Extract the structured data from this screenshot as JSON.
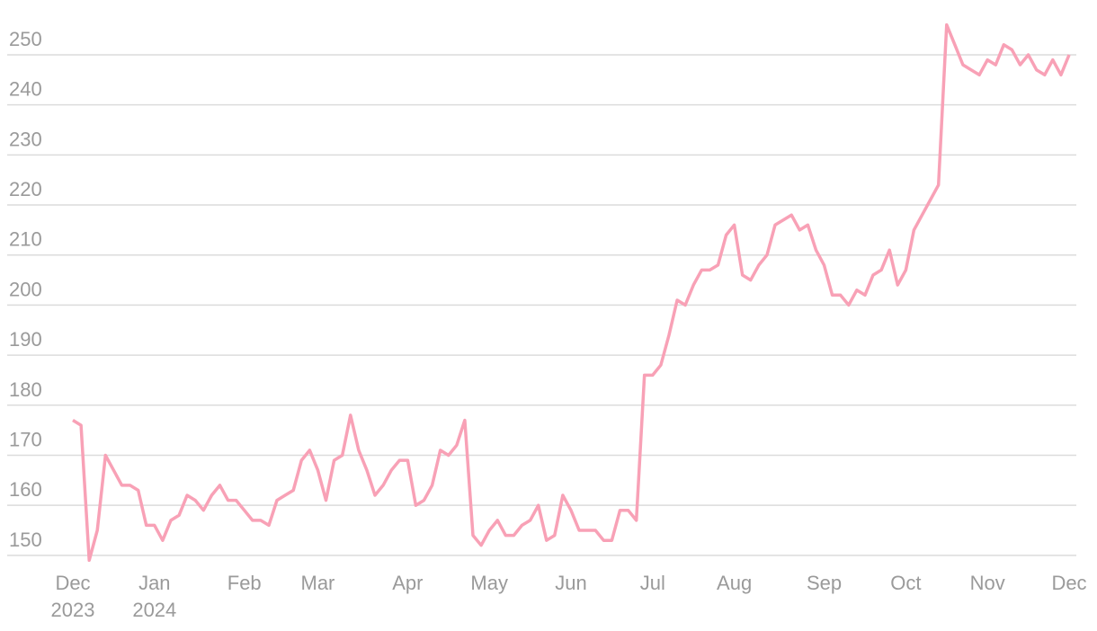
{
  "chart_data": {
    "type": "line",
    "categories": [
      "Dec 2023",
      null,
      null,
      null,
      null,
      null,
      null,
      null,
      null,
      null,
      "Jan 2024",
      null,
      null,
      null,
      null,
      null,
      null,
      null,
      null,
      null,
      null,
      "Feb",
      null,
      null,
      null,
      null,
      null,
      null,
      null,
      null,
      "Mar",
      null,
      null,
      null,
      null,
      null,
      null,
      null,
      null,
      null,
      null,
      "Apr",
      null,
      null,
      null,
      null,
      null,
      null,
      null,
      null,
      null,
      "May",
      null,
      null,
      null,
      null,
      null,
      null,
      null,
      null,
      null,
      "Jun",
      null,
      null,
      null,
      null,
      null,
      null,
      null,
      null,
      null,
      "Jul",
      null,
      null,
      null,
      null,
      null,
      null,
      null,
      null,
      null,
      "Aug",
      null,
      null,
      null,
      null,
      null,
      null,
      null,
      null,
      null,
      null,
      "Sep",
      null,
      null,
      null,
      null,
      null,
      null,
      null,
      null,
      null,
      "Oct",
      null,
      null,
      null,
      null,
      null,
      null,
      null,
      null,
      null,
      "Nov",
      null,
      null,
      null,
      null,
      null,
      null,
      null,
      null,
      null,
      "Dec"
    ],
    "values": [
      177,
      176,
      149,
      155,
      170,
      167,
      164,
      164,
      163,
      156,
      156,
      153,
      157,
      158,
      162,
      161,
      159,
      162,
      164,
      161,
      161,
      159,
      157,
      157,
      156,
      161,
      162,
      163,
      169,
      171,
      167,
      161,
      169,
      170,
      178,
      171,
      167,
      162,
      164,
      167,
      169,
      169,
      160,
      161,
      164,
      171,
      170,
      172,
      177,
      154,
      152,
      155,
      157,
      154,
      154,
      156,
      157,
      160,
      153,
      154,
      162,
      159,
      155,
      155,
      155,
      153,
      153,
      159,
      159,
      157,
      186,
      186,
      188,
      194,
      201,
      200,
      204,
      207,
      207,
      208,
      214,
      216,
      206,
      205,
      208,
      210,
      216,
      217,
      218,
      215,
      216,
      211,
      208,
      202,
      202,
      200,
      203,
      202,
      206,
      207,
      211,
      204,
      207,
      215,
      218,
      221,
      224,
      256,
      252,
      248,
      247,
      246,
      249,
      248,
      252,
      251,
      248,
      250,
      247,
      246,
      249,
      246,
      250
    ],
    "color": "#f8a1b6",
    "ylim": [
      148,
      257
    ],
    "yticks": [
      150,
      160,
      170,
      180,
      190,
      200,
      210,
      220,
      230,
      240,
      250
    ],
    "grid": true
  }
}
